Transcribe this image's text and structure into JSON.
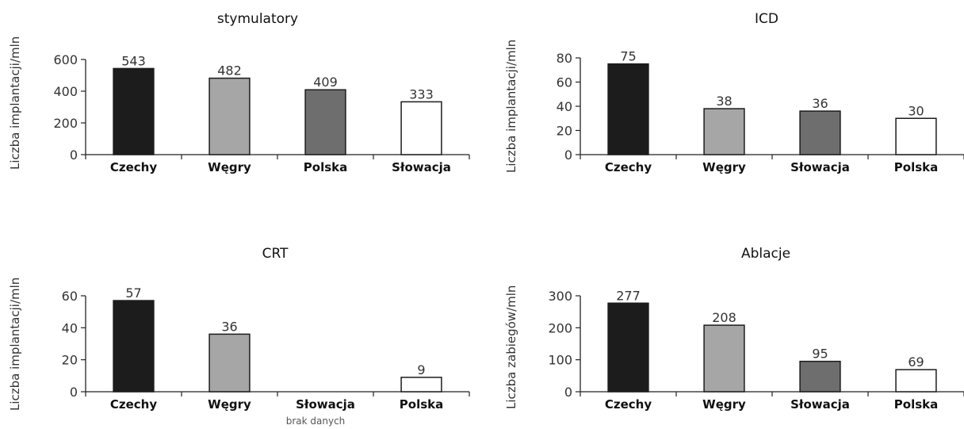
{
  "chart_data": [
    {
      "type": "bar",
      "title": "stymulatory",
      "ylabel": "Liczba implantacji/mln",
      "xlabel": "",
      "categories": [
        "Czechy",
        "Węgry",
        "Polska",
        "Słowacja"
      ],
      "values": [
        543,
        482,
        409,
        333
      ],
      "colors": [
        "#1c1c1c",
        "#a6a6a6",
        "#6e6e6e",
        "#ffffff"
      ],
      "yticks": [
        0,
        200,
        400,
        600
      ],
      "ylim": [
        0,
        650
      ],
      "note": "",
      "grid": false,
      "legend": "none"
    },
    {
      "type": "bar",
      "title": "ICD",
      "ylabel": "Liczba implantacji/mln",
      "xlabel": "",
      "categories": [
        "Czechy",
        "Węgry",
        "Słowacja",
        "Polska"
      ],
      "values": [
        75,
        38,
        36,
        30
      ],
      "colors": [
        "#1c1c1c",
        "#a6a6a6",
        "#6e6e6e",
        "#ffffff"
      ],
      "yticks": [
        0,
        20,
        40,
        60,
        80
      ],
      "ylim": [
        0,
        85
      ],
      "note": "",
      "grid": false,
      "legend": "none"
    },
    {
      "type": "bar",
      "title": "CRT",
      "ylabel": "Liczba implantacji/mln",
      "xlabel": "",
      "categories": [
        "Czechy",
        "Węgry",
        "Słowacja",
        "Polska"
      ],
      "values": [
        57,
        36,
        null,
        9
      ],
      "colors": [
        "#1c1c1c",
        "#a6a6a6",
        "#6e6e6e",
        "#ffffff"
      ],
      "yticks": [
        0,
        20,
        40,
        60
      ],
      "ylim": [
        0,
        65
      ],
      "note": "brak danych",
      "grid": false,
      "legend": "none"
    },
    {
      "type": "bar",
      "title": "Ablacje",
      "ylabel": "Liczba zabiegów/mln",
      "xlabel": "",
      "categories": [
        "Czechy",
        "Węgry",
        "Słowacja",
        "Polska"
      ],
      "values": [
        277,
        208,
        95,
        69
      ],
      "colors": [
        "#1c1c1c",
        "#a6a6a6",
        "#6e6e6e",
        "#ffffff"
      ],
      "yticks": [
        0,
        100,
        200,
        300
      ],
      "ylim": [
        0,
        305
      ],
      "note": "",
      "grid": false,
      "legend": "none"
    }
  ]
}
